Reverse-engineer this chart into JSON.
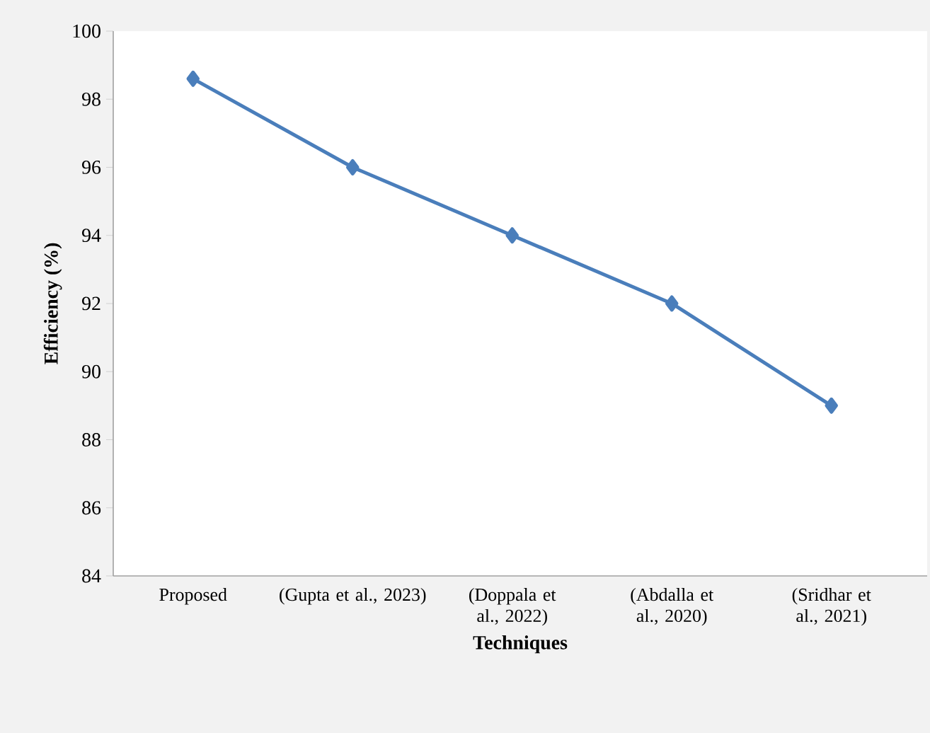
{
  "chart_data": {
    "type": "line",
    "xlabel": "Techniques",
    "ylabel": "Efficiency (%)",
    "categories": [
      "Proposed",
      "(Gupta et al., 2023)",
      "(Doppala et al., 2022)",
      "(Abdalla et al., 2020)",
      "(Sridhar et al., 2021)"
    ],
    "series": [
      {
        "color": "#4a7ebb",
        "values": [
          98.6,
          96,
          94,
          92,
          89
        ]
      }
    ],
    "ylim": [
      84,
      100
    ],
    "yticks": [
      84,
      86,
      88,
      90,
      92,
      94,
      96,
      98,
      100
    ],
    "marker": "diamond",
    "line_style": "solid"
  }
}
